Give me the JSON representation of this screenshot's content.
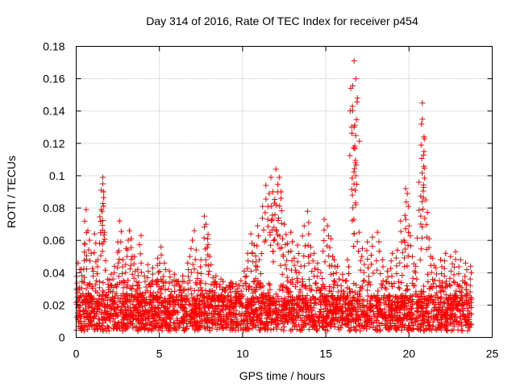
{
  "chart_data": {
    "type": "scatter",
    "title": "Day 314 of 2016, Rate Of TEC Index for receiver p454",
    "xlabel": "GPS time / hours",
    "ylabel": "ROTI / TECUs",
    "xlim": [
      0,
      25
    ],
    "ylim": [
      0,
      0.18
    ],
    "xticks": [
      0,
      5,
      10,
      15,
      20,
      25
    ],
    "yticks": [
      0,
      0.02,
      0.04,
      0.06,
      0.08,
      0.1,
      0.12,
      0.14,
      0.16,
      0.18
    ],
    "xtick_labels": [
      "0",
      "5",
      "10",
      "15",
      "20",
      "25"
    ],
    "ytick_labels": [
      "0",
      "0.02",
      "0.04",
      "0.06",
      "0.08",
      "0.1",
      "0.12",
      "0.14",
      "0.16",
      "0.18"
    ],
    "grid": true,
    "marker": "+",
    "color": "#ff0000",
    "series": [
      {
        "name": "ROTI",
        "points": [
          [
            0.1,
            0.046
          ],
          [
            0.3,
            0.042
          ],
          [
            0.5,
            0.058
          ],
          [
            0.6,
            0.079
          ],
          [
            0.7,
            0.066
          ],
          [
            0.9,
            0.052
          ],
          [
            1.1,
            0.064
          ],
          [
            1.3,
            0.048
          ],
          [
            1.5,
            0.091
          ],
          [
            1.6,
            0.099
          ],
          [
            1.6,
            0.095
          ],
          [
            1.5,
            0.079
          ],
          [
            1.7,
            0.065
          ],
          [
            1.9,
            0.036
          ],
          [
            2.1,
            0.039
          ],
          [
            2.3,
            0.044
          ],
          [
            2.5,
            0.059
          ],
          [
            2.6,
            0.072
          ],
          [
            2.8,
            0.048
          ],
          [
            3.0,
            0.055
          ],
          [
            3.2,
            0.066
          ],
          [
            3.3,
            0.061
          ],
          [
            3.5,
            0.05
          ],
          [
            3.7,
            0.042
          ],
          [
            3.9,
            0.063
          ],
          [
            4.1,
            0.038
          ],
          [
            4.3,
            0.045
          ],
          [
            4.6,
            0.043
          ],
          [
            4.9,
            0.049
          ],
          [
            5.1,
            0.056
          ],
          [
            5.3,
            0.046
          ],
          [
            5.6,
            0.041
          ],
          [
            5.9,
            0.039
          ],
          [
            6.2,
            0.032
          ],
          [
            6.4,
            0.038
          ],
          [
            6.7,
            0.046
          ],
          [
            6.9,
            0.055
          ],
          [
            7.1,
            0.066
          ],
          [
            7.3,
            0.04
          ],
          [
            7.5,
            0.048
          ],
          [
            7.7,
            0.075
          ],
          [
            7.8,
            0.07
          ],
          [
            7.9,
            0.061
          ],
          [
            8.1,
            0.045
          ],
          [
            8.4,
            0.038
          ],
          [
            8.7,
            0.036
          ],
          [
            9.0,
            0.031
          ],
          [
            9.3,
            0.034
          ],
          [
            9.6,
            0.033
          ],
          [
            9.9,
            0.035
          ],
          [
            10.1,
            0.041
          ],
          [
            10.3,
            0.052
          ],
          [
            10.5,
            0.064
          ],
          [
            10.7,
            0.057
          ],
          [
            10.9,
            0.069
          ],
          [
            11.0,
            0.048
          ],
          [
            11.2,
            0.081
          ],
          [
            11.4,
            0.094
          ],
          [
            11.6,
            0.089
          ],
          [
            11.7,
            0.099
          ],
          [
            11.8,
            0.073
          ],
          [
            11.9,
            0.083
          ],
          [
            12.0,
            0.104
          ],
          [
            12.1,
            0.09
          ],
          [
            12.2,
            0.099
          ],
          [
            12.3,
            0.086
          ],
          [
            12.4,
            0.061
          ],
          [
            12.5,
            0.07
          ],
          [
            12.7,
            0.058
          ],
          [
            12.9,
            0.065
          ],
          [
            13.1,
            0.049
          ],
          [
            13.3,
            0.057
          ],
          [
            13.5,
            0.044
          ],
          [
            13.7,
            0.069
          ],
          [
            13.9,
            0.078
          ],
          [
            14.1,
            0.056
          ],
          [
            14.3,
            0.052
          ],
          [
            14.5,
            0.046
          ],
          [
            14.7,
            0.04
          ],
          [
            14.9,
            0.073
          ],
          [
            15.1,
            0.069
          ],
          [
            15.3,
            0.061
          ],
          [
            15.5,
            0.048
          ],
          [
            15.7,
            0.044
          ],
          [
            16.0,
            0.039
          ],
          [
            16.3,
            0.048
          ],
          [
            16.5,
            0.154
          ],
          [
            16.6,
            0.143
          ],
          [
            16.7,
            0.171
          ],
          [
            16.8,
            0.16
          ],
          [
            16.8,
            0.1
          ],
          [
            16.6,
            0.088
          ],
          [
            16.9,
            0.148
          ],
          [
            16.7,
            0.13
          ],
          [
            17.0,
            0.065
          ],
          [
            17.2,
            0.055
          ],
          [
            17.5,
            0.059
          ],
          [
            17.8,
            0.062
          ],
          [
            18.1,
            0.065
          ],
          [
            18.4,
            0.048
          ],
          [
            18.7,
            0.041
          ],
          [
            19.0,
            0.052
          ],
          [
            19.3,
            0.054
          ],
          [
            19.5,
            0.072
          ],
          [
            19.7,
            0.06
          ],
          [
            19.8,
            0.092
          ],
          [
            19.9,
            0.089
          ],
          [
            20.0,
            0.069
          ],
          [
            20.2,
            0.05
          ],
          [
            20.4,
            0.044
          ],
          [
            20.6,
            0.096
          ],
          [
            20.7,
            0.075
          ],
          [
            20.8,
            0.145
          ],
          [
            20.8,
            0.135
          ],
          [
            20.9,
            0.124
          ],
          [
            20.9,
            0.115
          ],
          [
            21.0,
            0.085
          ],
          [
            21.2,
            0.061
          ],
          [
            21.4,
            0.049
          ],
          [
            21.6,
            0.043
          ],
          [
            21.9,
            0.048
          ],
          [
            22.2,
            0.052
          ],
          [
            22.5,
            0.05
          ],
          [
            22.8,
            0.053
          ],
          [
            23.1,
            0.048
          ],
          [
            23.4,
            0.046
          ],
          [
            23.7,
            0.044
          ]
        ]
      }
    ]
  }
}
